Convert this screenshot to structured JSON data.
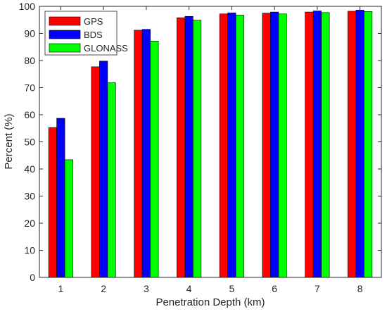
{
  "chart_data": {
    "type": "bar",
    "title": "",
    "xlabel": "Penetration Depth (km)",
    "ylabel": "Percent (%)",
    "ylim": [
      0,
      100
    ],
    "yticks": [
      0,
      10,
      20,
      30,
      40,
      50,
      60,
      70,
      80,
      90,
      100
    ],
    "categories": [
      "1",
      "2",
      "3",
      "4",
      "5",
      "6",
      "7",
      "8"
    ],
    "grid": false,
    "legend_position": "top-left",
    "series": [
      {
        "name": "GPS",
        "color": "#ff0000",
        "values": [
          55.3,
          77.7,
          91.2,
          95.8,
          97.2,
          97.5,
          97.9,
          98.2
        ]
      },
      {
        "name": "BDS",
        "color": "#0000ff",
        "values": [
          58.7,
          79.8,
          91.5,
          96.3,
          97.6,
          97.9,
          98.3,
          98.6
        ]
      },
      {
        "name": "GLONASS",
        "color": "#00ff00",
        "values": [
          43.4,
          71.8,
          87.2,
          94.9,
          96.8,
          97.2,
          97.7,
          98.1
        ]
      }
    ]
  }
}
